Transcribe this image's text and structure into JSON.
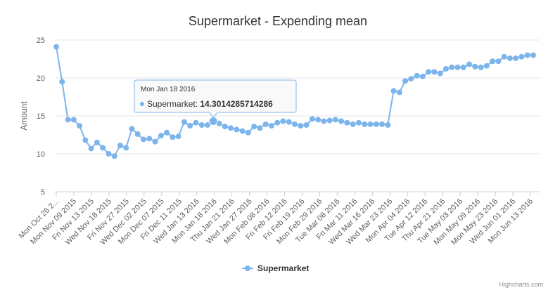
{
  "chart_data": {
    "type": "line",
    "title": "Supermarket - Expending mean",
    "ylabel": "Amount",
    "xlabel": "",
    "ylim": [
      5,
      25
    ],
    "yticks": [
      5,
      10,
      15,
      20,
      25
    ],
    "grid": true,
    "legend_position": "bottom-center",
    "credits": "Highcharts.com",
    "colors": {
      "series": "#7cb5ec",
      "grid": "#e6e6e6",
      "axis": "#c0d0e0",
      "tooltip_border": "#7cb5ec"
    },
    "x_tick_labels": [
      "Mon Oct 26 2...",
      "Mon Nov 09 2015",
      "Fri Nov 13 2015",
      "Wed Nov 18 2015",
      "Fri Nov 27 2015",
      "Wed Dec 02 2015",
      "Mon Dec 07 2015",
      "Fri Dec 11 2015",
      "Wed Jan 13 2016",
      "Mon Jan 18 2016",
      "Thu Jan 21 2016",
      "Wed Jan 27 2016",
      "Mon Feb 08 2016",
      "Fri Feb 12 2016",
      "Fri Feb 19 2016",
      "Mon Feb 29 2016",
      "Tue Mar 08 2016",
      "Fri Mar 11 2016",
      "Wed Mar 16 2016",
      "Wed Mar 23 2016",
      "Mon Apr 04 2016",
      "Tue Apr 12 2016",
      "Thu Apr 21 2016",
      "Tue May 03 2016",
      "Mon May 09 2016",
      "Mon May 23 2016",
      "Wed Jun 01 2016",
      "Mon Jun 13 2016"
    ],
    "series": [
      {
        "name": "Supermarket",
        "values": [
          24.1,
          19.5,
          14.5,
          14.5,
          13.7,
          11.8,
          10.7,
          11.5,
          10.8,
          10.0,
          9.7,
          11.1,
          10.8,
          13.3,
          12.6,
          11.9,
          12.0,
          11.6,
          12.4,
          12.8,
          12.2,
          12.3,
          14.2,
          13.7,
          14.1,
          13.8,
          13.8,
          14.3014285714286,
          14.0,
          13.6,
          13.4,
          13.2,
          13.0,
          12.8,
          13.6,
          13.4,
          13.9,
          13.7,
          14.1,
          14.3,
          14.2,
          13.9,
          13.7,
          13.8,
          14.6,
          14.5,
          14.3,
          14.4,
          14.5,
          14.3,
          14.1,
          13.9,
          14.1,
          13.9,
          13.9,
          13.9,
          13.9,
          13.8,
          18.3,
          18.1,
          19.6,
          19.9,
          20.3,
          20.2,
          20.8,
          20.8,
          20.6,
          21.2,
          21.4,
          21.4,
          21.4,
          21.8,
          21.5,
          21.4,
          21.6,
          22.2,
          22.2,
          22.8,
          22.6,
          22.6,
          22.8,
          23.0,
          23.0
        ]
      }
    ],
    "tooltip": {
      "date": "Mon Jan 18 2016",
      "series_name": "Supermarket:",
      "value_text": "14.3014285714286",
      "point_index": 27
    }
  }
}
